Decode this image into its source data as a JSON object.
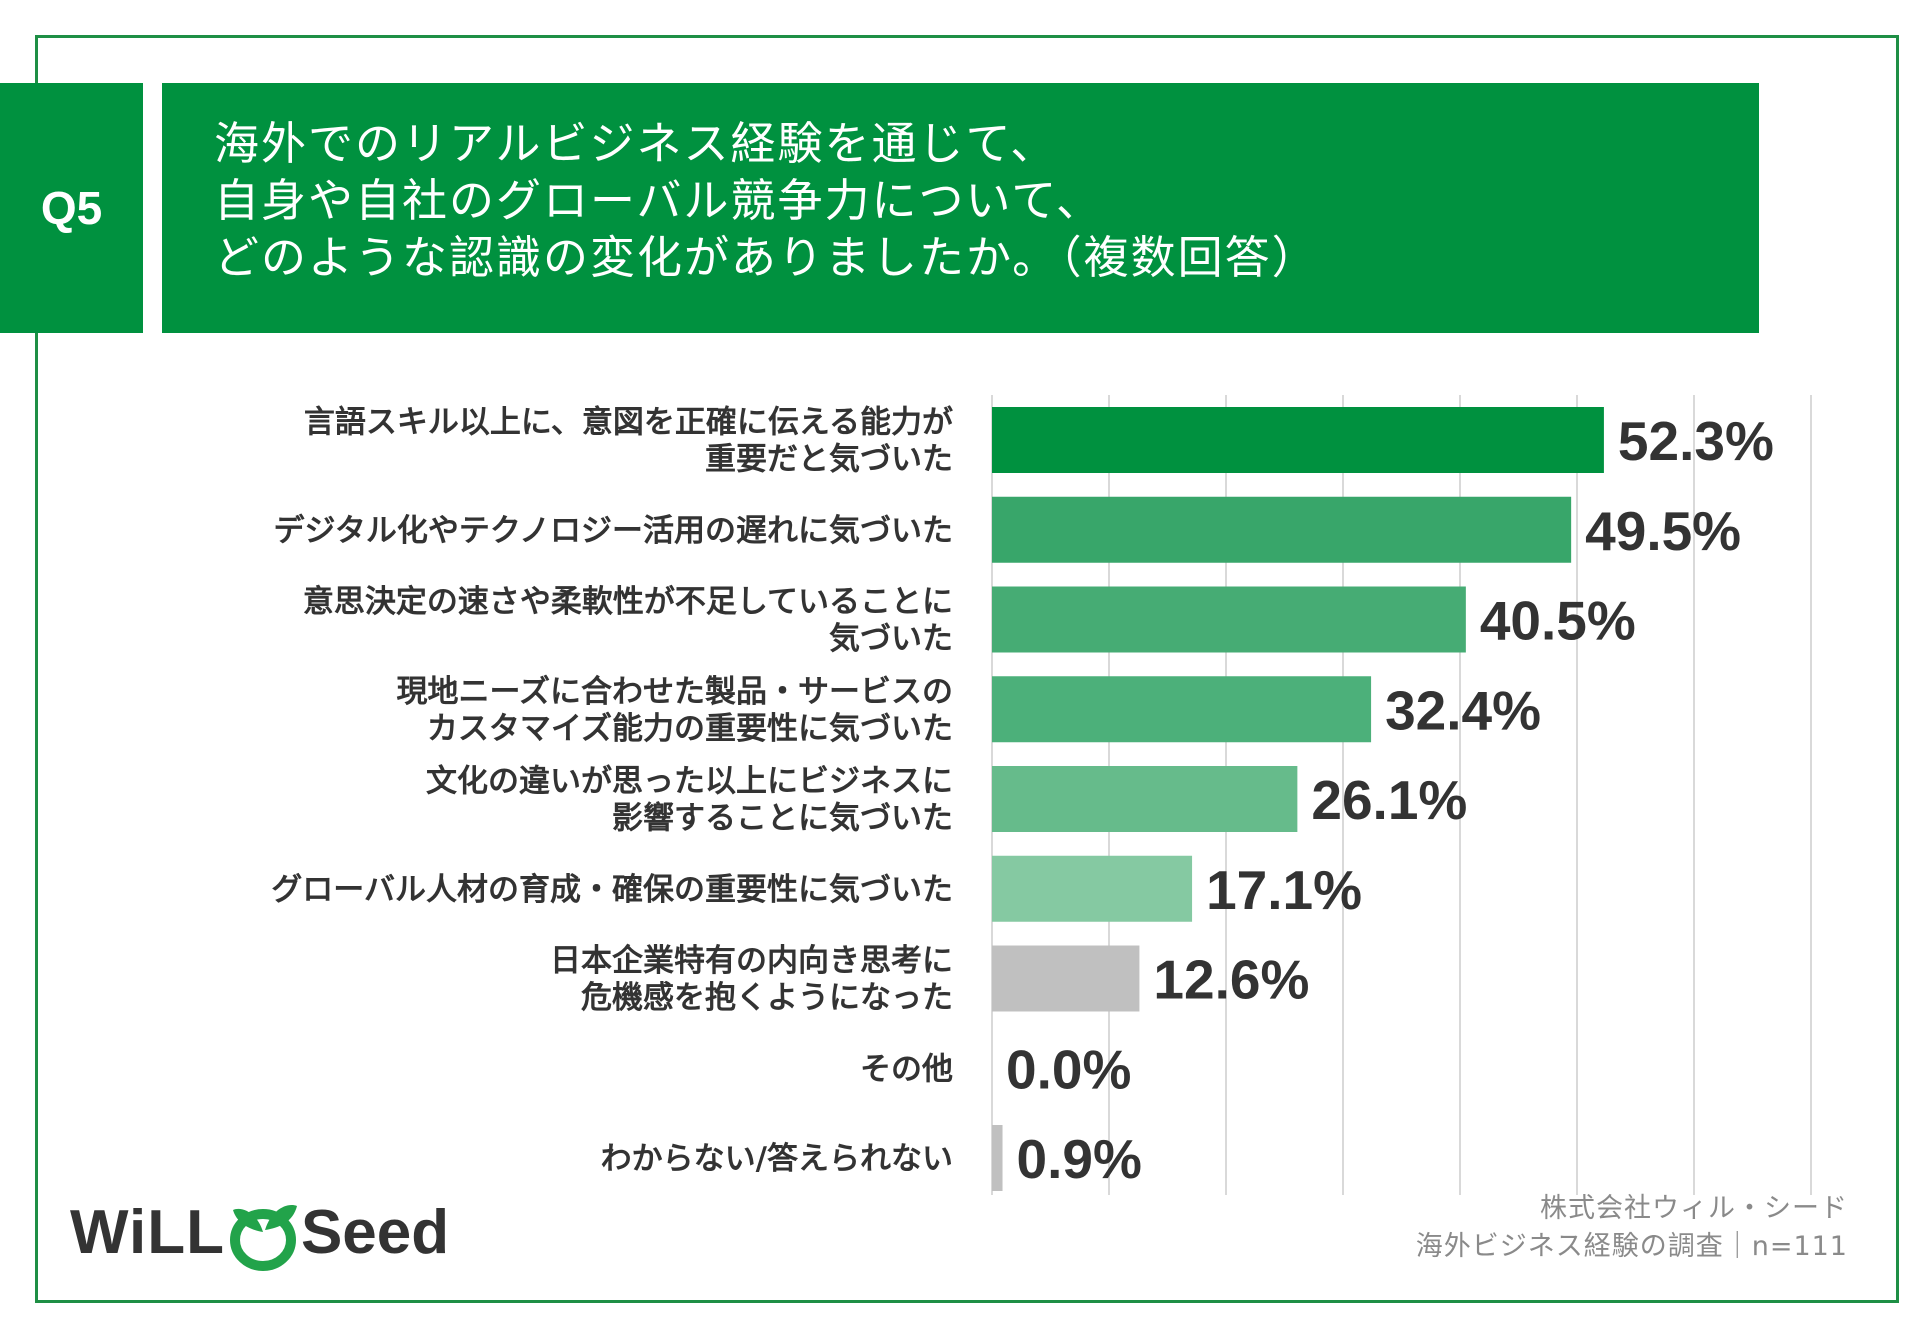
{
  "question": {
    "number": "Q5",
    "lines": [
      "海外でのリアルビジネス経験を通じて、",
      "自身や自社のグローバル競争力について、",
      "どのような認識の変化がありましたか。（複数回答）"
    ]
  },
  "chart_data": {
    "type": "bar",
    "orientation": "horizontal",
    "categories": [
      [
        "言語スキル以上に、意図を正確に伝える能力が",
        "重要だと気づいた"
      ],
      [
        "デジタル化やテクノロジー活用の遅れに気づいた"
      ],
      [
        "意思決定の速さや柔軟性が不足していることに",
        "気づいた"
      ],
      [
        "現地ニーズに合わせた製品・サービスの",
        "カスタマイズ能力の重要性に気づいた"
      ],
      [
        "文化の違いが思った以上にビジネスに",
        "影響することに気づいた"
      ],
      [
        "グローバル人材の育成・確保の重要性に気づいた"
      ],
      [
        "日本企業特有の内向き思考に",
        "危機感を抱くようになった"
      ],
      [
        "その他"
      ],
      [
        "わからない/答えられない"
      ]
    ],
    "values": [
      52.3,
      49.5,
      40.5,
      32.4,
      26.1,
      17.1,
      12.6,
      0.0,
      0.9
    ],
    "value_labels": [
      "52.3%",
      "49.5%",
      "40.5%",
      "32.4%",
      "26.1%",
      "17.1%",
      "12.6%",
      "0.0%",
      "0.9%"
    ],
    "bar_colors": [
      "#00913f",
      "#38a66a",
      "#46ac74",
      "#4cb07a",
      "#66bb8b",
      "#85c9a2",
      "#c0c0c0",
      "#c0c0c0",
      "#c0c0c0"
    ],
    "xlim": [
      0,
      70
    ],
    "grid": true
  },
  "logo": {
    "part1": "WiLL",
    "part2": "Seed"
  },
  "source": {
    "line1": "株式会社ウィル・シード",
    "line2": "海外ビジネス経験の調査｜n=111"
  },
  "colors": {
    "brand_green": "#00913f",
    "frame_green": "#1e8f45"
  }
}
